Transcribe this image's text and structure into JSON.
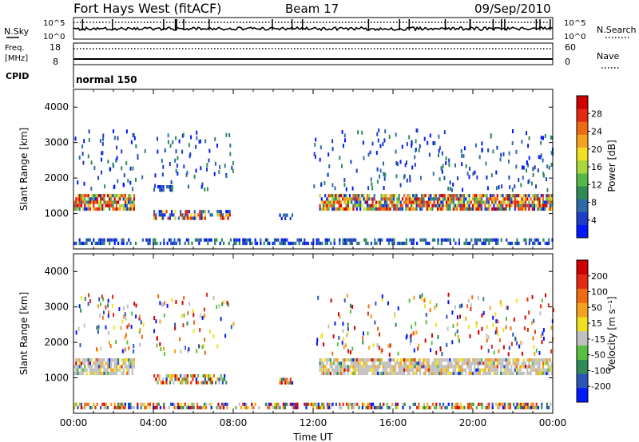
{
  "header": {
    "title": "Fort Hays West (fitACF)",
    "beam": "Beam 17",
    "date": "09/Sep/2010"
  },
  "status_panels": {
    "nsky": {
      "label": "N.Sky",
      "tick_top": "10^5",
      "tick_bottom": "10^0"
    },
    "nsearch": {
      "label": "N.Search",
      "tick_top": "10^5",
      "tick_bottom": "10^0"
    },
    "freq": {
      "label_line1": "Freq.",
      "label_line2": "[MHz]",
      "tick_top": "18",
      "tick_bottom": "8"
    },
    "nave": {
      "label": "Nave",
      "tick_top": "60",
      "tick_bottom": "0"
    },
    "cpid": {
      "label": "CPID",
      "value": "normal 150"
    }
  },
  "chart_data": [
    {
      "type": "heatmap",
      "name": "power",
      "ylabel": "Slant Range [km]",
      "xlabel": "",
      "xlim": [
        0,
        24
      ],
      "ylim": [
        0,
        4500
      ],
      "yticks": [
        1000,
        2000,
        3000,
        4000
      ],
      "colorbar": {
        "label": "Power [dB]",
        "ticks": [
          "4",
          "8",
          "12",
          "16",
          "20",
          "24",
          "28"
        ],
        "colors": [
          "#0018ff",
          "#1e3cc8",
          "#2f6aa8",
          "#2e8b57",
          "#55b848",
          "#a8d83a",
          "#f0e020",
          "#f5a21e",
          "#ef6a10",
          "#e62a12",
          "#d00000"
        ]
      },
      "regions": [
        {
          "x": [
            0.0,
            3.0
          ],
          "y": [
            1150,
            1550
          ],
          "level": "high"
        },
        {
          "x": [
            4.0,
            7.8
          ],
          "y": [
            850,
            1100
          ],
          "level": "mid"
        },
        {
          "x": [
            4.2,
            5.0
          ],
          "y": [
            1650,
            1800
          ],
          "level": "low"
        },
        {
          "x": [
            10.3,
            11.0
          ],
          "y": [
            850,
            1000
          ],
          "level": "low"
        },
        {
          "x": [
            12.3,
            24.0
          ],
          "y": [
            1150,
            1550
          ],
          "level": "high"
        },
        {
          "x": [
            0.0,
            24.0
          ],
          "y": [
            150,
            300
          ],
          "level": "low"
        }
      ]
    },
    {
      "type": "heatmap",
      "name": "velocity",
      "ylabel": "Slant Range [km]",
      "xlabel": "Time UT",
      "xlim": [
        0,
        24
      ],
      "ylim": [
        0,
        4500
      ],
      "yticks": [
        1000,
        2000,
        3000,
        4000
      ],
      "xticks": [
        "00:00",
        "04:00",
        "08:00",
        "12:00",
        "16:00",
        "20:00",
        "00:00"
      ],
      "colorbar": {
        "label": "Velocity [m s⁻¹]",
        "ticks": [
          "200",
          "100",
          "50",
          "15",
          "-15",
          "-50",
          "-100",
          "-200"
        ],
        "colors": [
          "#0018ff",
          "#2a56b8",
          "#2e8b57",
          "#58c040",
          "#c0c0c0",
          "#f0e020",
          "#f5a21e",
          "#ef6a10",
          "#e62a12",
          "#d00000"
        ]
      },
      "regions": [
        {
          "x": [
            0.0,
            3.0
          ],
          "y": [
            1150,
            1550
          ],
          "level": "ground"
        },
        {
          "x": [
            4.0,
            7.8
          ],
          "y": [
            850,
            1100
          ],
          "level": "mixed"
        },
        {
          "x": [
            10.3,
            11.0
          ],
          "y": [
            850,
            1000
          ],
          "level": "mixed"
        },
        {
          "x": [
            12.3,
            24.0
          ],
          "y": [
            1150,
            1550
          ],
          "level": "ground"
        },
        {
          "x": [
            0.0,
            24.0
          ],
          "y": [
            150,
            300
          ],
          "level": "mixed"
        }
      ]
    }
  ]
}
